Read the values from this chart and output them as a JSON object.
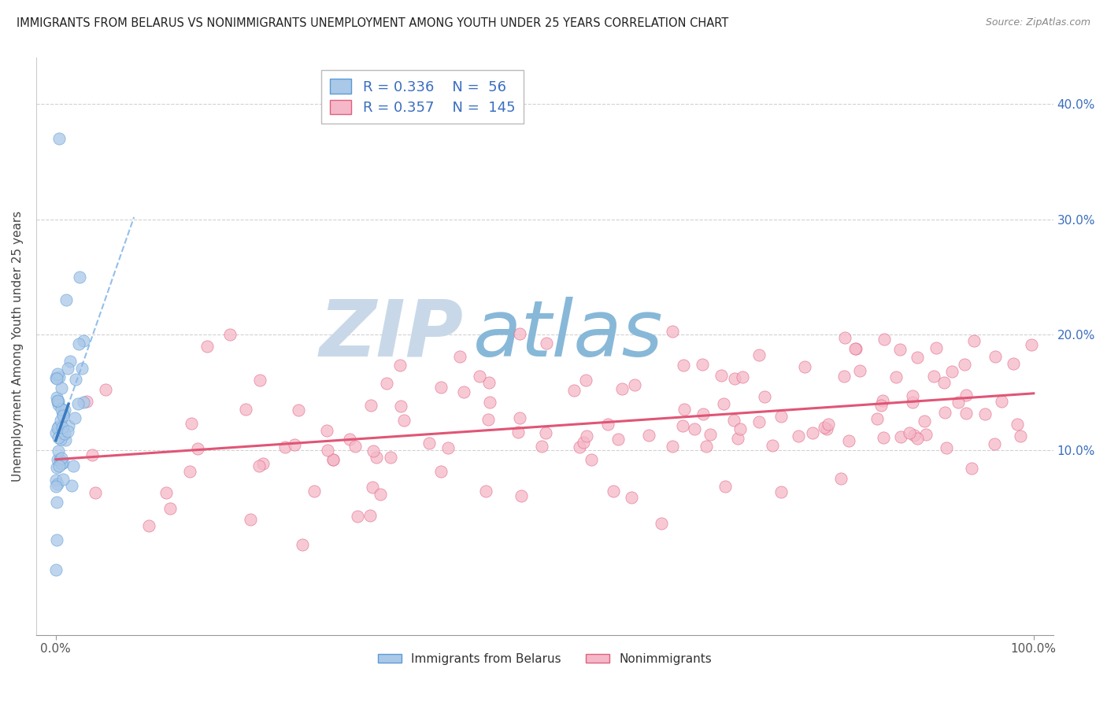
{
  "title": "IMMIGRANTS FROM BELARUS VS NONIMMIGRANTS UNEMPLOYMENT AMONG YOUTH UNDER 25 YEARS CORRELATION CHART",
  "source": "Source: ZipAtlas.com",
  "ylabel": "Unemployment Among Youth under 25 years",
  "xlim": [
    -0.02,
    1.02
  ],
  "ylim": [
    -0.06,
    0.44
  ],
  "xtick_vals": [
    0.0,
    1.0
  ],
  "xticklabels": [
    "0.0%",
    "100.0%"
  ],
  "yticks": [
    0.1,
    0.2,
    0.3,
    0.4
  ],
  "yticklabels": [
    "10.0%",
    "20.0%",
    "30.0%",
    "40.0%"
  ],
  "blue_R": 0.336,
  "blue_N": 56,
  "pink_R": 0.357,
  "pink_N": 145,
  "blue_color": "#aac8e8",
  "blue_edge_color": "#5b9bd5",
  "blue_line_color": "#3a7abf",
  "blue_dashed_color": "#88b8e8",
  "pink_color": "#f5b8c8",
  "pink_edge_color": "#e06080",
  "pink_line_color": "#e05575",
  "watermark_zip": "ZIP",
  "watermark_atlas": "atlas",
  "watermark_color_zip": "#c8d8e8",
  "watermark_color_atlas": "#88b8d8",
  "background_color": "#ffffff",
  "grid_color": "#cccccc",
  "title_color": "#222222",
  "legend_text_color": "#3a6ebf",
  "right_tick_color": "#3a6ebf"
}
